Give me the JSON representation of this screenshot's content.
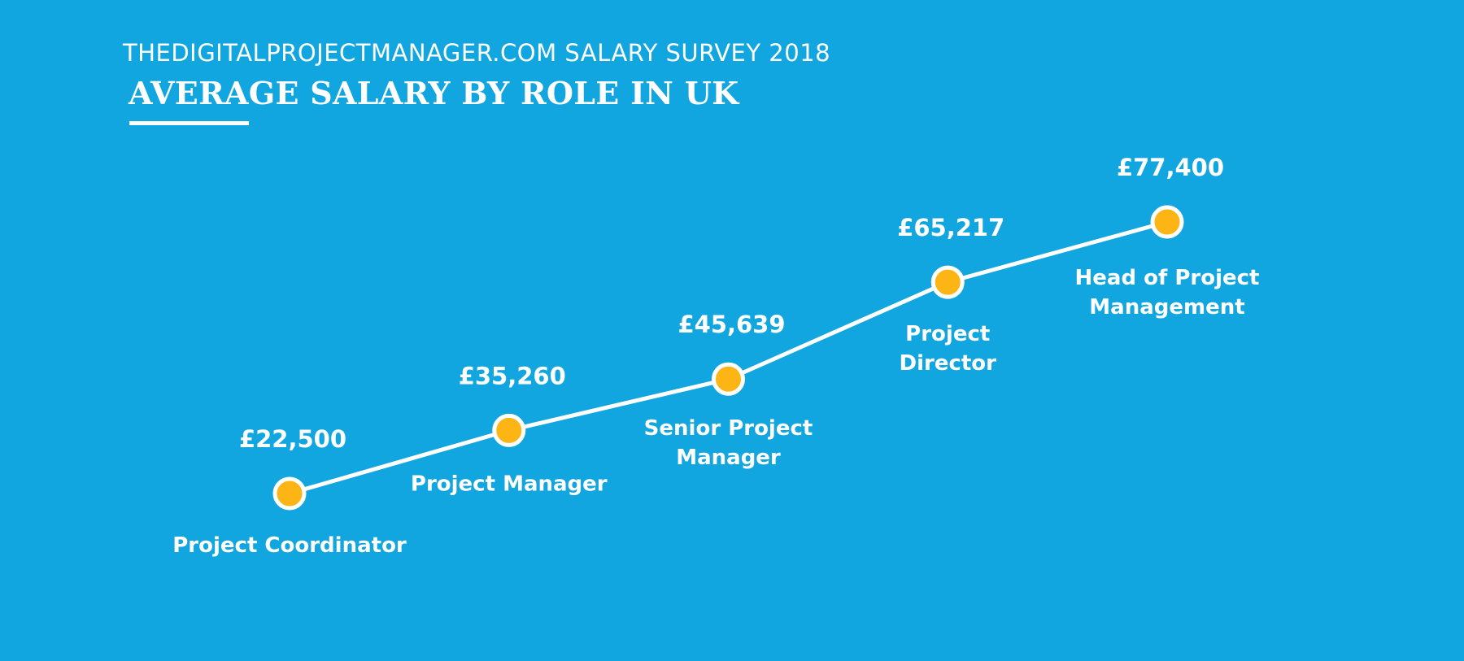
{
  "header": {
    "supertitle": "THEDIGITALPROJECTMANAGER.COM SALARY SURVEY 2018",
    "title": "AVERAGE SALARY BY ROLE IN UK"
  },
  "colors": {
    "background": "#11a6df",
    "line": "#ffffff",
    "marker_fill": "#fdb515",
    "marker_stroke": "#ffffff"
  },
  "chart_data": {
    "type": "line",
    "title": "AVERAGE SALARY BY ROLE IN UK",
    "xlabel": "",
    "ylabel": "",
    "grid": false,
    "categories": [
      [
        "Project Coordinator"
      ],
      [
        "Project Manager"
      ],
      [
        "Senior Project",
        "Manager"
      ],
      [
        "Project",
        "Director"
      ],
      [
        "Head of Project",
        "Management"
      ]
    ],
    "values": [
      22500,
      35260,
      45639,
      65217,
      77400
    ],
    "value_labels": [
      "£22,500",
      "£35,260",
      "£45,639",
      "£65,217",
      "£77,400"
    ],
    "category_label_position": [
      "below",
      "below",
      "below",
      "below",
      "below"
    ]
  }
}
